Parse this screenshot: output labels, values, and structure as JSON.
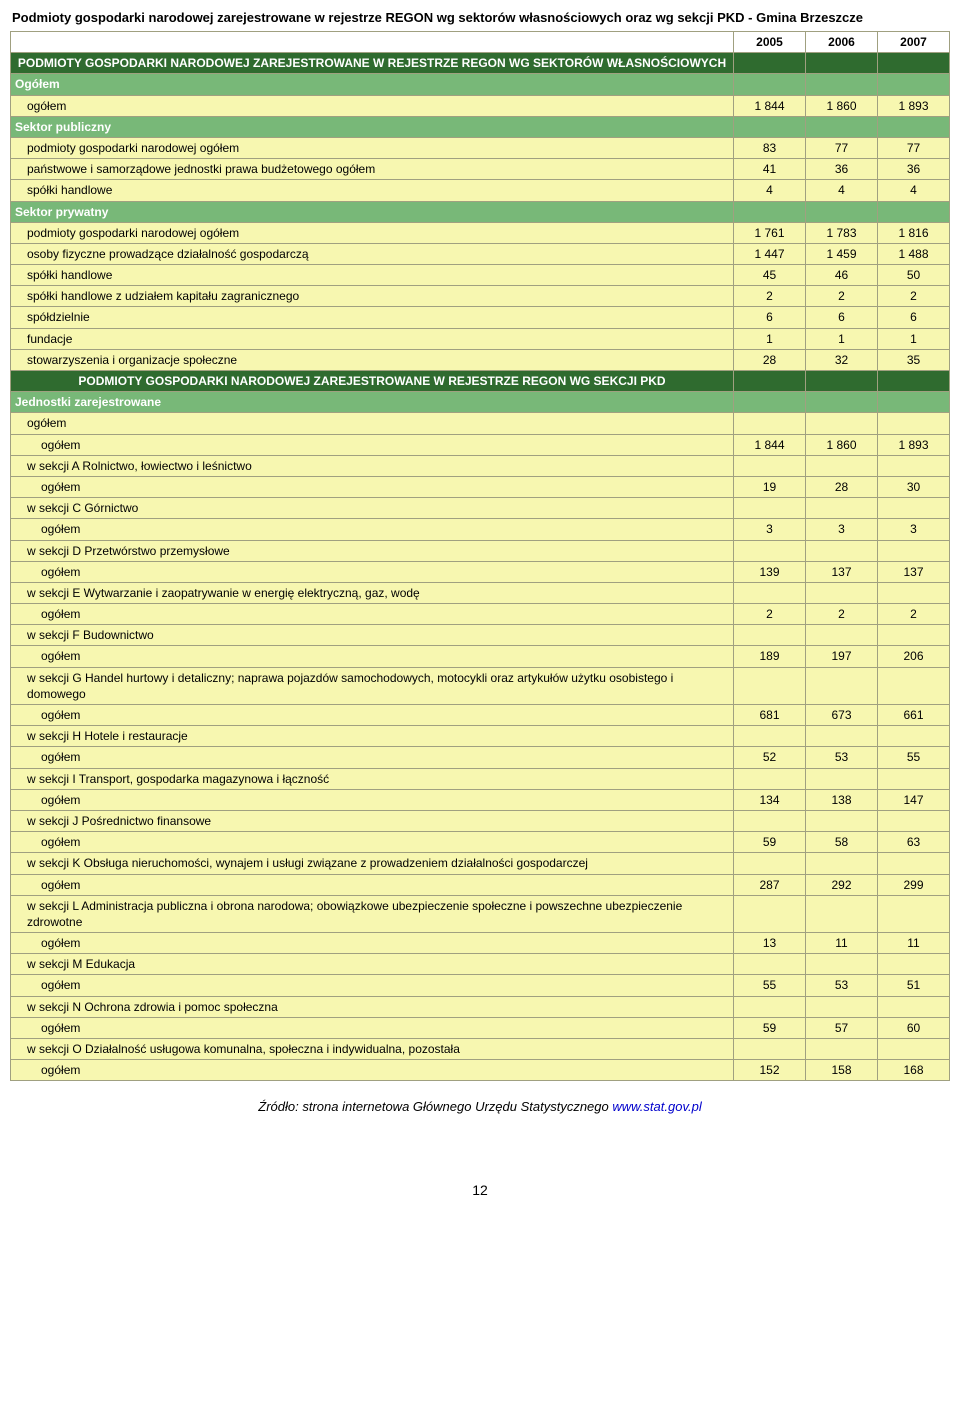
{
  "title": "Podmioty gospodarki narodowej zarejestrowane w rejestrze REGON wg sektorów własnościowych oraz wg sekcji PKD - Gmina Brzeszcze",
  "years": [
    "2005",
    "2006",
    "2007"
  ],
  "colors": {
    "dark_green": "#2f6b2f",
    "med_green": "#78b878",
    "yellow": "#f7f7b0",
    "border": "#a0a080",
    "text_white": "#ffffff",
    "text_black": "#000000"
  },
  "rows": [
    {
      "type": "darkgreen",
      "label": "PODMIOTY GOSPODARKI NARODOWEJ ZAREJESTROWANE W REJESTRZE REGON WG SEKTORÓW WŁASNOŚCIOWYCH",
      "v": [
        "",
        "",
        ""
      ],
      "indent": 0
    },
    {
      "type": "medgreen",
      "label": "Ogółem",
      "v": [
        "",
        "",
        ""
      ],
      "indent": 0
    },
    {
      "type": "yellow",
      "label": "ogółem",
      "v": [
        "1 844",
        "1 860",
        "1 893"
      ],
      "indent": 1
    },
    {
      "type": "medgreen",
      "label": "Sektor publiczny",
      "v": [
        "",
        "",
        ""
      ],
      "indent": 0
    },
    {
      "type": "yellow",
      "label": "podmioty gospodarki narodowej ogółem",
      "v": [
        "83",
        "77",
        "77"
      ],
      "indent": 1
    },
    {
      "type": "yellow",
      "label": "państwowe i samorządowe jednostki prawa budżetowego ogółem",
      "v": [
        "41",
        "36",
        "36"
      ],
      "indent": 1
    },
    {
      "type": "yellow",
      "label": "spółki handlowe",
      "v": [
        "4",
        "4",
        "4"
      ],
      "indent": 1
    },
    {
      "type": "medgreen",
      "label": "Sektor prywatny",
      "v": [
        "",
        "",
        ""
      ],
      "indent": 0
    },
    {
      "type": "yellow",
      "label": "podmioty gospodarki narodowej ogółem",
      "v": [
        "1 761",
        "1 783",
        "1 816"
      ],
      "indent": 1
    },
    {
      "type": "yellow",
      "label": "osoby fizyczne prowadzące działalność gospodarczą",
      "v": [
        "1 447",
        "1 459",
        "1 488"
      ],
      "indent": 1
    },
    {
      "type": "yellow",
      "label": "spółki handlowe",
      "v": [
        "45",
        "46",
        "50"
      ],
      "indent": 1
    },
    {
      "type": "yellow",
      "label": "spółki handlowe z udziałem kapitału zagranicznego",
      "v": [
        "2",
        "2",
        "2"
      ],
      "indent": 1
    },
    {
      "type": "yellow",
      "label": "spółdzielnie",
      "v": [
        "6",
        "6",
        "6"
      ],
      "indent": 1
    },
    {
      "type": "yellow",
      "label": "fundacje",
      "v": [
        "1",
        "1",
        "1"
      ],
      "indent": 1
    },
    {
      "type": "yellow",
      "label": "stowarzyszenia i organizacje społeczne",
      "v": [
        "28",
        "32",
        "35"
      ],
      "indent": 1
    },
    {
      "type": "darkgreen",
      "label": "PODMIOTY GOSPODARKI NARODOWEJ ZAREJESTROWANE W REJESTRZE REGON WG SEKCJI PKD",
      "v": [
        "",
        "",
        ""
      ],
      "indent": 0
    },
    {
      "type": "medgreen",
      "label": "Jednostki zarejestrowane",
      "v": [
        "",
        "",
        ""
      ],
      "indent": 0
    },
    {
      "type": "yellow",
      "label": "ogółem",
      "v": [
        "",
        "",
        ""
      ],
      "indent": 1
    },
    {
      "type": "yellow",
      "label": "ogółem",
      "v": [
        "1 844",
        "1 860",
        "1 893"
      ],
      "indent": 2
    },
    {
      "type": "yellow",
      "label": "w sekcji A Rolnictwo, łowiectwo i leśnictwo",
      "v": [
        "",
        "",
        ""
      ],
      "indent": 1
    },
    {
      "type": "yellow",
      "label": "ogółem",
      "v": [
        "19",
        "28",
        "30"
      ],
      "indent": 2
    },
    {
      "type": "yellow",
      "label": "w sekcji C Górnictwo",
      "v": [
        "",
        "",
        ""
      ],
      "indent": 1
    },
    {
      "type": "yellow",
      "label": "ogółem",
      "v": [
        "3",
        "3",
        "3"
      ],
      "indent": 2
    },
    {
      "type": "yellow",
      "label": "w sekcji D Przetwórstwo przemysłowe",
      "v": [
        "",
        "",
        ""
      ],
      "indent": 1
    },
    {
      "type": "yellow",
      "label": "ogółem",
      "v": [
        "139",
        "137",
        "137"
      ],
      "indent": 2
    },
    {
      "type": "yellow",
      "label": "w sekcji E Wytwarzanie i zaopatrywanie w energię elektryczną, gaz, wodę",
      "v": [
        "",
        "",
        ""
      ],
      "indent": 1
    },
    {
      "type": "yellow",
      "label": "ogółem",
      "v": [
        "2",
        "2",
        "2"
      ],
      "indent": 2
    },
    {
      "type": "yellow",
      "label": "w sekcji F Budownictwo",
      "v": [
        "",
        "",
        ""
      ],
      "indent": 1
    },
    {
      "type": "yellow",
      "label": "ogółem",
      "v": [
        "189",
        "197",
        "206"
      ],
      "indent": 2
    },
    {
      "type": "yellow",
      "label": "w sekcji G Handel hurtowy i detaliczny; naprawa pojazdów samochodowych, motocykli oraz artykułów użytku osobistego i domowego",
      "v": [
        "",
        "",
        ""
      ],
      "indent": 1
    },
    {
      "type": "yellow",
      "label": "ogółem",
      "v": [
        "681",
        "673",
        "661"
      ],
      "indent": 2
    },
    {
      "type": "yellow",
      "label": "w sekcji H Hotele i restauracje",
      "v": [
        "",
        "",
        ""
      ],
      "indent": 1
    },
    {
      "type": "yellow",
      "label": "ogółem",
      "v": [
        "52",
        "53",
        "55"
      ],
      "indent": 2
    },
    {
      "type": "yellow",
      "label": "w sekcji I Transport, gospodarka magazynowa i łączność",
      "v": [
        "",
        "",
        ""
      ],
      "indent": 1
    },
    {
      "type": "yellow",
      "label": "ogółem",
      "v": [
        "134",
        "138",
        "147"
      ],
      "indent": 2
    },
    {
      "type": "yellow",
      "label": "w sekcji J Pośrednictwo finansowe",
      "v": [
        "",
        "",
        ""
      ],
      "indent": 1
    },
    {
      "type": "yellow",
      "label": "ogółem",
      "v": [
        "59",
        "58",
        "63"
      ],
      "indent": 2
    },
    {
      "type": "yellow",
      "label": "w sekcji K Obsługa nieruchomości, wynajem i usługi związane z prowadzeniem działalności gospodarczej",
      "v": [
        "",
        "",
        ""
      ],
      "indent": 1
    },
    {
      "type": "yellow",
      "label": "ogółem",
      "v": [
        "287",
        "292",
        "299"
      ],
      "indent": 2
    },
    {
      "type": "yellow",
      "label": "w sekcji L Administracja publiczna i obrona narodowa; obowiązkowe ubezpieczenie społeczne i powszechne ubezpieczenie zdrowotne",
      "v": [
        "",
        "",
        ""
      ],
      "indent": 1
    },
    {
      "type": "yellow",
      "label": "ogółem",
      "v": [
        "13",
        "11",
        "11"
      ],
      "indent": 2
    },
    {
      "type": "yellow",
      "label": "w sekcji M Edukacja",
      "v": [
        "",
        "",
        ""
      ],
      "indent": 1
    },
    {
      "type": "yellow",
      "label": "ogółem",
      "v": [
        "55",
        "53",
        "51"
      ],
      "indent": 2
    },
    {
      "type": "yellow",
      "label": "w sekcji N Ochrona zdrowia i pomoc społeczna",
      "v": [
        "",
        "",
        ""
      ],
      "indent": 1
    },
    {
      "type": "yellow",
      "label": "ogółem",
      "v": [
        "59",
        "57",
        "60"
      ],
      "indent": 2
    },
    {
      "type": "yellow",
      "label": "w sekcji O Działalność usługowa komunalna, społeczna i indywidualna, pozostała",
      "v": [
        "",
        "",
        ""
      ],
      "indent": 1
    },
    {
      "type": "yellow",
      "label": "ogółem",
      "v": [
        "152",
        "158",
        "168"
      ],
      "indent": 2
    }
  ],
  "source_prefix": "Źródło: strona internetowa Głównego Urzędu Statystycznego ",
  "source_link_text": "www.stat.gov.pl",
  "page_number": "12"
}
